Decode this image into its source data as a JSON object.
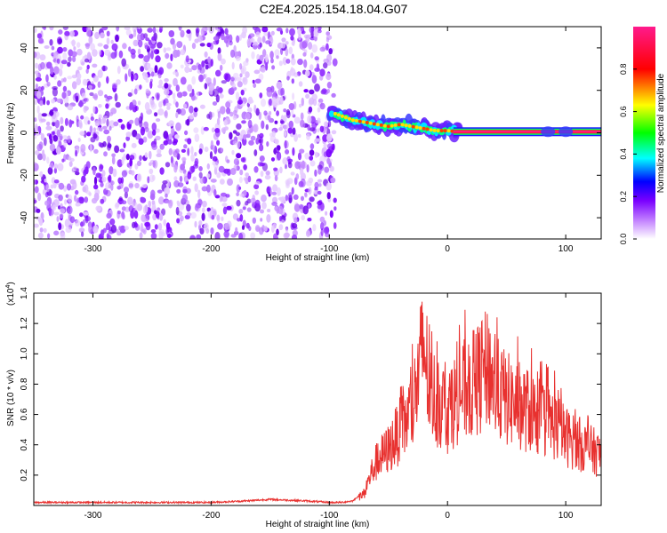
{
  "title": "C2E4.2025.154.18.04.G07",
  "chart_data": [
    {
      "type": "heatmap",
      "xlabel": "Height of straight line (km)",
      "ylabel": "Frequency (Hz)",
      "xlim": [
        -350,
        130
      ],
      "ylim": [
        -50,
        50
      ],
      "x_ticks": [
        -300,
        -200,
        -100,
        0,
        100
      ],
      "y_ticks": [
        -40,
        -20,
        0,
        20,
        40
      ],
      "colorbar": {
        "label": "Normalized spectral amplitude",
        "range": [
          0,
          1
        ],
        "ticks": [
          "0.0",
          "0.2",
          "0.4",
          "0.6",
          "0.8"
        ],
        "colors": [
          "#ffffff",
          "#8a2be2",
          "#0000ff",
          "#00ffff",
          "#00ff00",
          "#ffff00",
          "#ff0000",
          "#ff1493"
        ]
      },
      "ridge": {
        "x": [
          -100,
          -90,
          -80,
          -70,
          -60,
          -50,
          -40,
          -30,
          -20,
          -10,
          0,
          10,
          50,
          100,
          130
        ],
        "y": [
          10,
          8,
          6,
          5,
          4,
          3,
          4,
          3,
          2,
          1,
          1,
          0.5,
          0.5,
          0.5,
          0.5
        ]
      }
    },
    {
      "type": "line",
      "xlabel": "Height of straight line (km)",
      "ylabel": "SNR (10 * v/v)",
      "y_multiplier": "(x10",
      "y_multiplier_exp": "4",
      "y_multiplier_close": ")",
      "xlim": [
        -350,
        130
      ],
      "ylim": [
        0,
        1.4
      ],
      "x_ticks": [
        -300,
        -200,
        -100,
        0,
        100
      ],
      "y_ticks": [
        "0.2",
        "0.4",
        "0.6",
        "0.8",
        "1.0",
        "1.2",
        "1.4"
      ],
      "line_color": "#e8312f",
      "series": [
        {
          "x": [
            -350,
            -300,
            -250,
            -200,
            -170,
            -150,
            -120,
            -100,
            -90,
            -80,
            -70,
            -65,
            -60,
            -50,
            -40,
            -30,
            -25,
            -20,
            -15,
            -10,
            0,
            10,
            20,
            30,
            35,
            40,
            50,
            60,
            70,
            80,
            90,
            100,
            110,
            120,
            130
          ],
          "y": [
            0.02,
            0.02,
            0.02,
            0.02,
            0.03,
            0.04,
            0.03,
            0.02,
            0.02,
            0.03,
            0.1,
            0.25,
            0.35,
            0.45,
            0.6,
            0.75,
            1.0,
            1.3,
            0.9,
            0.85,
            0.75,
            0.9,
            0.95,
            1.05,
            1.1,
            0.95,
            0.85,
            0.8,
            0.75,
            0.7,
            0.65,
            0.55,
            0.5,
            0.45,
            0.4
          ]
        }
      ]
    }
  ]
}
